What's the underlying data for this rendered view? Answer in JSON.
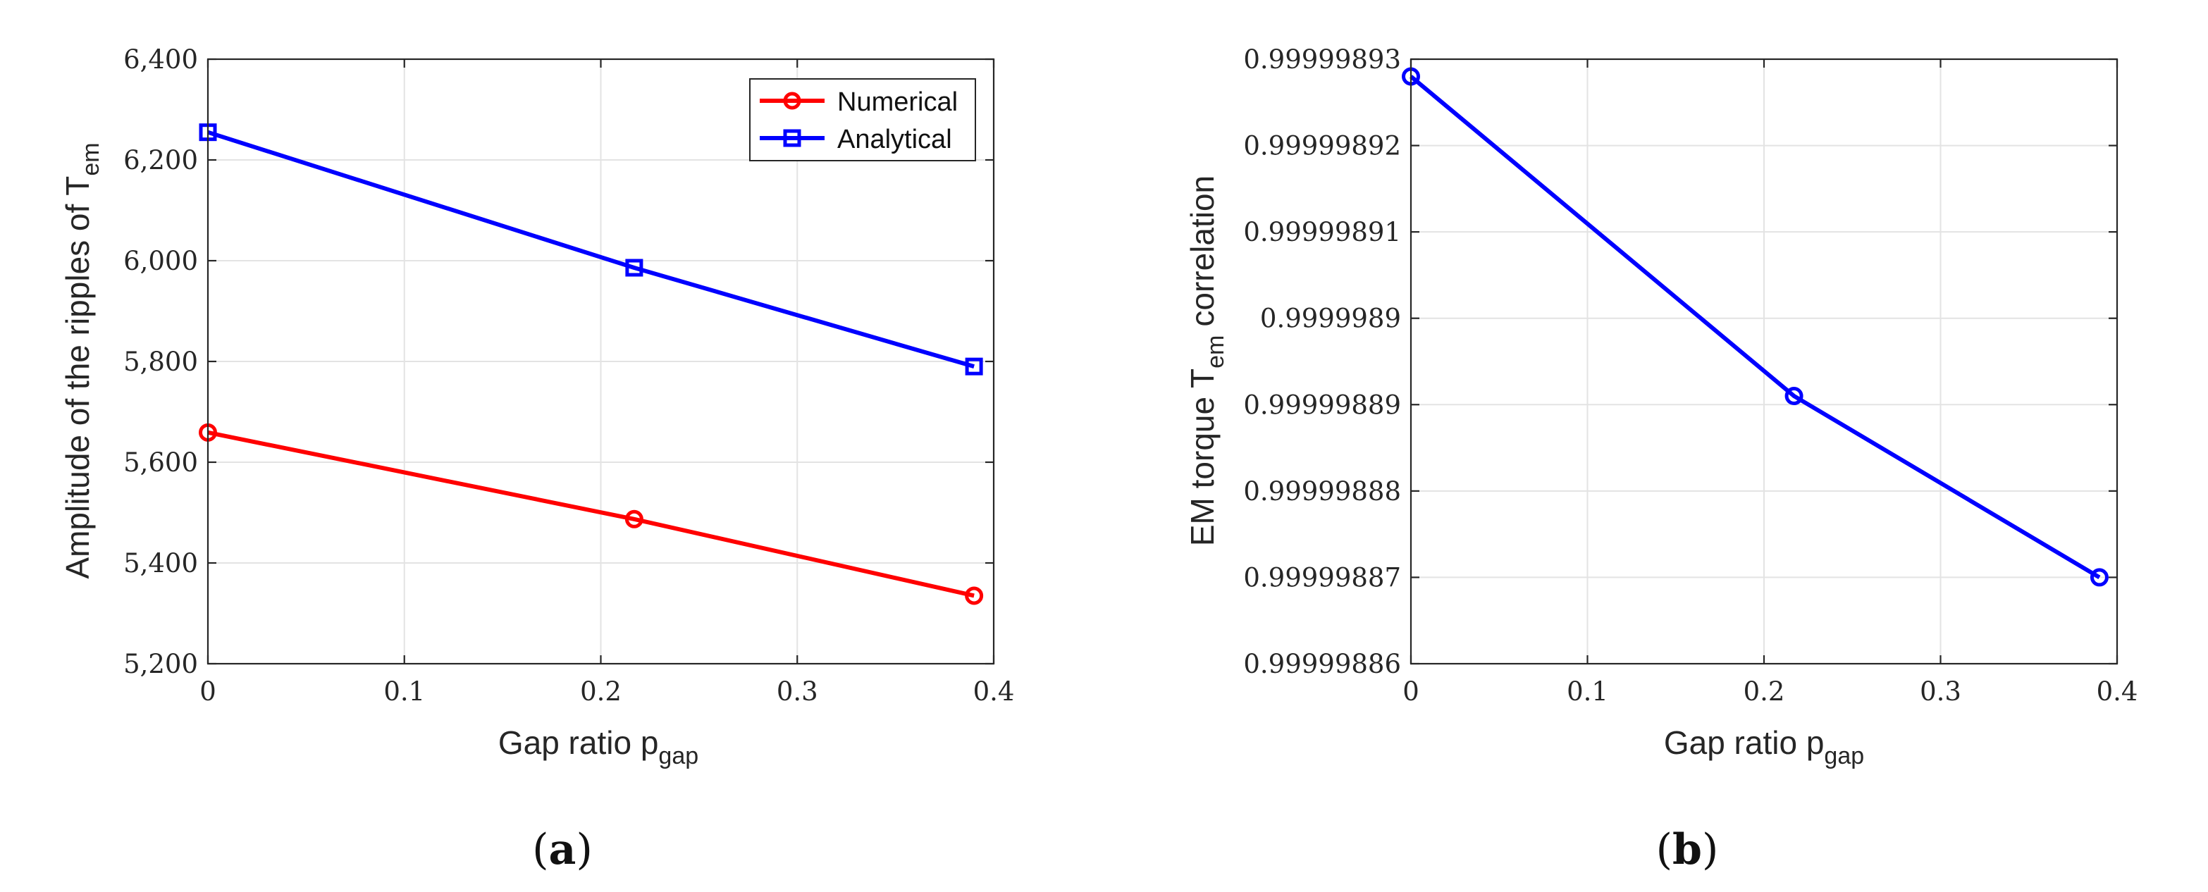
{
  "chart_data": [
    {
      "type": "line",
      "panel_label": "a",
      "xlabel": "Gap ratio",
      "xlabel_sub": "gap",
      "ylabel": "Amplitude of the ripples of T",
      "ylabel_sub": "em",
      "xlim": [
        0,
        0.4
      ],
      "ylim": [
        5200,
        6400
      ],
      "xticks": [
        0,
        0.1,
        0.2,
        0.3,
        0.4
      ],
      "xtick_labels": [
        "0",
        "0.1",
        "0.2",
        "0.3",
        "0.4"
      ],
      "yticks": [
        5200,
        5400,
        5600,
        5800,
        6000,
        6200,
        6400
      ],
      "ytick_labels": [
        "5,200",
        "5,400",
        "5,600",
        "5,800",
        "6,000",
        "6,200",
        "6,400"
      ],
      "grid": true,
      "legend_position": "top-right",
      "series": [
        {
          "name": "Numerical",
          "color": "#ff0000",
          "marker": "circle",
          "x": [
            0,
            0.217,
            0.39
          ],
          "values": [
            5659,
            5487,
            5335
          ]
        },
        {
          "name": "Analytical",
          "color": "#0000ff",
          "marker": "square",
          "x": [
            0,
            0.217,
            0.39
          ],
          "values": [
            6255,
            5986,
            5790
          ]
        }
      ]
    },
    {
      "type": "line",
      "panel_label": "b",
      "xlabel": "Gap ratio",
      "xlabel_sub": "gap",
      "ylabel_prefix": "EM torque T",
      "ylabel_sub": "em",
      "ylabel_suffix": "correlation",
      "xlim": [
        0,
        0.4
      ],
      "ylim": [
        0.99999886,
        0.99999893
      ],
      "xticks": [
        0,
        0.1,
        0.2,
        0.3,
        0.4
      ],
      "xtick_labels": [
        "0",
        "0.1",
        "0.2",
        "0.3",
        "0.4"
      ],
      "yticks": [
        0.99999886,
        0.99999887,
        0.99999888,
        0.99999889,
        0.9999989,
        0.99999891,
        0.99999892,
        0.99999893
      ],
      "ytick_labels": [
        "0.99999886",
        "0.99999887",
        "0.99999888",
        "0.99999889",
        "0.9999989",
        "0.99999891",
        "0.99999892",
        "0.99999893"
      ],
      "grid": true,
      "series": [
        {
          "name": "EM torque correlation",
          "color": "#0000ff",
          "marker": "circle",
          "x": [
            0,
            0.217,
            0.39
          ],
          "values": [
            0.999998928,
            0.999998891,
            0.99999887
          ]
        }
      ]
    }
  ]
}
